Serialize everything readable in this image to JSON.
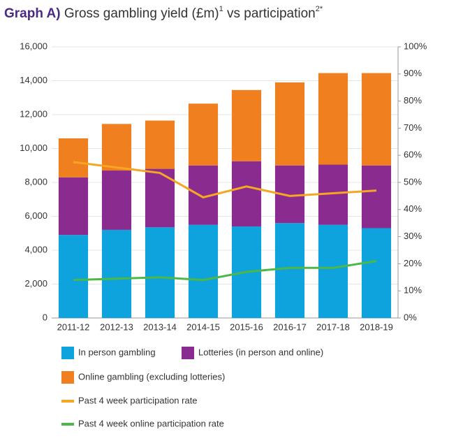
{
  "chart_data": {
    "type": "bar",
    "title": {
      "label": "Graph A)",
      "text": "Gross gambling yield (£m)",
      "note1": "1",
      "text2": " vs participation",
      "note2": "2*"
    },
    "categories": [
      "2011-12",
      "2012-13",
      "2013-14",
      "2014-15",
      "2015-16",
      "2016-17",
      "2017-18",
      "2018-19"
    ],
    "series": [
      {
        "name": "In person gambling",
        "color": "#0ea3dc",
        "values": [
          4900,
          5200,
          5350,
          5500,
          5400,
          5600,
          5500,
          5300
        ]
      },
      {
        "name": "Lotteries (in person and online)",
        "color": "#8a2b8f",
        "values": [
          3400,
          3500,
          3450,
          3500,
          3850,
          3400,
          3550,
          3700
        ]
      },
      {
        "name": "Online gambling (excluding lotteries)",
        "color": "#f07f1f",
        "values": [
          2300,
          2750,
          2850,
          3650,
          4200,
          4900,
          5400,
          5450
        ]
      },
      {
        "name": "Past 4 week participation rate",
        "color": "#f5a623",
        "type": "line",
        "axis": "y2",
        "values": [
          57.5,
          55.5,
          53.5,
          44.5,
          48.5,
          45,
          46,
          47
        ]
      },
      {
        "name": "Past 4 week online participation rate",
        "color": "#4cb848",
        "type": "line",
        "axis": "y2",
        "values": [
          14,
          14.5,
          15,
          14,
          17,
          18.5,
          18.5,
          21
        ]
      }
    ],
    "ylim": [
      0,
      16000
    ],
    "yticks": [
      0,
      {
        "value": 2000,
        "label": "2,000"
      },
      {
        "value": 4000,
        "label": "4,000"
      },
      {
        "value": 6000,
        "label": "6,000"
      },
      {
        "value": 8000,
        "label": "8,000"
      },
      {
        "value": 10000,
        "label": "10,000"
      },
      {
        "value": 12000,
        "label": "12,000"
      },
      {
        "value": 14000,
        "label": "14,000"
      },
      {
        "value": 16000,
        "label": "16,000"
      }
    ],
    "y2lim": [
      0,
      100
    ],
    "y2ticks": [
      {
        "value": 0,
        "label": "0%"
      },
      {
        "value": 10,
        "label": "10%"
      },
      {
        "value": 20,
        "label": "20%"
      },
      {
        "value": 30,
        "label": "30%"
      },
      {
        "value": 40,
        "label": "40%"
      },
      {
        "value": 50,
        "label": "50%"
      },
      {
        "value": 60,
        "label": "60%"
      },
      {
        "value": 70,
        "label": "70%"
      },
      {
        "value": 80,
        "label": "80%"
      },
      {
        "value": 90,
        "label": "90%"
      },
      {
        "value": 100,
        "label": "100%"
      }
    ],
    "grid": true
  }
}
